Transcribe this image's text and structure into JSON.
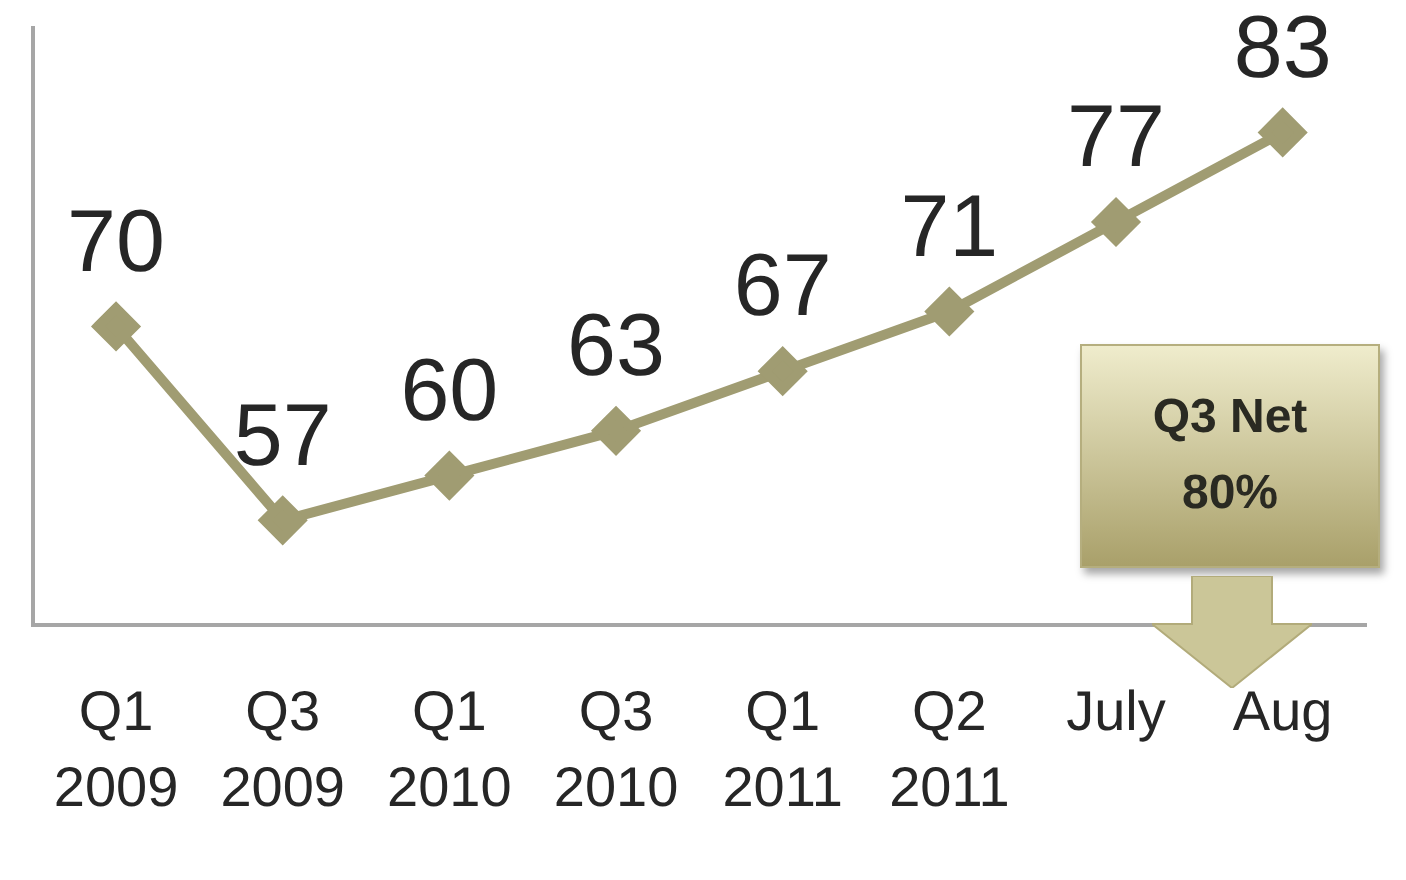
{
  "chart_data": {
    "type": "line",
    "categories": [
      "Q1 2009",
      "Q3 2009",
      "Q1 2010",
      "Q3 2010",
      "Q1 2011",
      "Q2 2011",
      "July",
      "Aug"
    ],
    "values": [
      70,
      57,
      60,
      63,
      67,
      71,
      77,
      83
    ],
    "color": "#a09c72",
    "marker": "diamond",
    "data_labels": true,
    "grid": false,
    "legend": false,
    "tick_labels": "x",
    "annotations": [
      "Q3 Net 80%"
    ]
  }
}
